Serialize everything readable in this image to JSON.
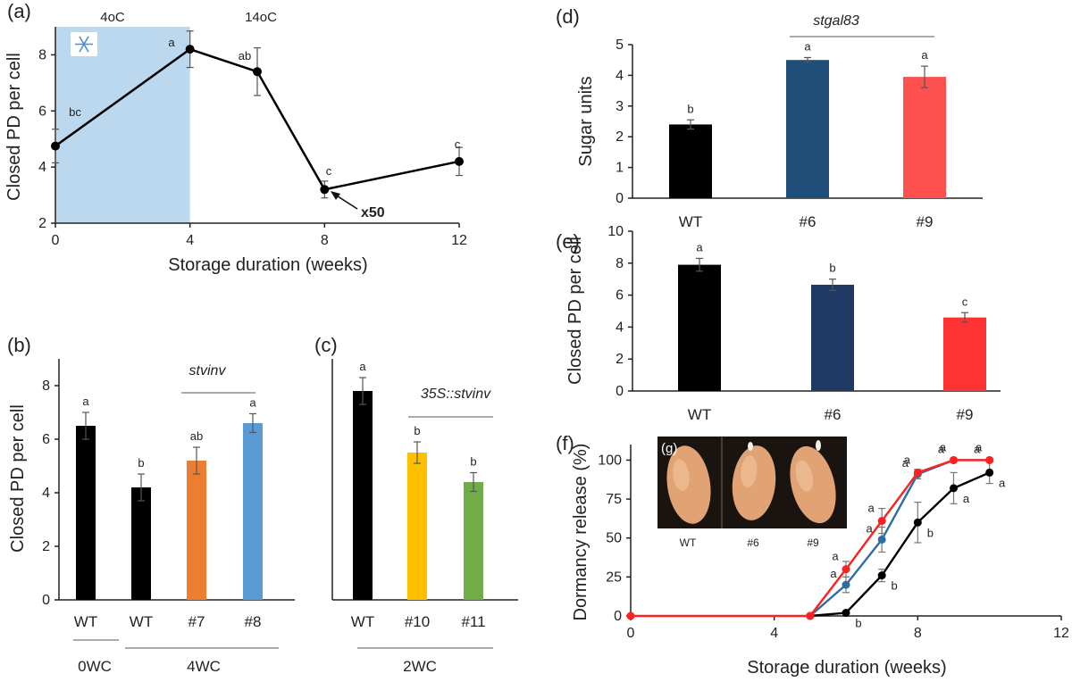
{
  "chart_data": [
    {
      "id": "a",
      "letter": "(a)",
      "type": "line",
      "xlabel": "Storage duration (weeks)",
      "ylabel": "Closed PD per cell",
      "xlim": [
        0,
        12
      ],
      "ylim": [
        2,
        9
      ],
      "xticks": [
        0,
        4,
        8,
        12
      ],
      "yticks": [
        2,
        4,
        6,
        8
      ],
      "x": [
        0,
        4,
        6,
        8,
        12
      ],
      "values": [
        4.75,
        8.2,
        7.4,
        3.2,
        4.2
      ],
      "errors": [
        0.6,
        0.65,
        0.85,
        0.3,
        0.5
      ],
      "sig": [
        "bc",
        "a",
        "ab",
        "c",
        "c"
      ],
      "shade": {
        "from": 0,
        "to": 4,
        "color": "#bcd8ee"
      },
      "temperatures": [
        "4oC",
        "14oC"
      ],
      "annotation": "x50",
      "icon": "snowflake-icon",
      "line_color": "#000000"
    },
    {
      "id": "b",
      "letter": "(b)",
      "type": "bar",
      "ylabel": "Closed PD per cell",
      "ylim": [
        0,
        9
      ],
      "yticks": [
        0,
        2,
        4,
        6,
        8
      ],
      "categories": [
        "WT",
        "WT",
        "#7",
        "#8"
      ],
      "values": [
        6.5,
        4.2,
        5.2,
        6.6
      ],
      "errors": [
        0.5,
        0.5,
        0.5,
        0.35
      ],
      "sig": [
        "a",
        "b",
        "ab",
        "a"
      ],
      "colors": [
        "#000000",
        "#000000",
        "#ed7d31",
        "#5b9bd5"
      ],
      "bracket_label": "stvinv",
      "groups": [
        "0WC",
        "4WC"
      ]
    },
    {
      "id": "c",
      "letter": "(c)",
      "type": "bar",
      "ylim": [
        0,
        9
      ],
      "categories": [
        "WT",
        "#10",
        "#11"
      ],
      "values": [
        7.8,
        5.5,
        4.4
      ],
      "errors": [
        0.5,
        0.4,
        0.35
      ],
      "sig": [
        "a",
        "b",
        "b"
      ],
      "colors": [
        "#000000",
        "#ffc000",
        "#70ad47"
      ],
      "bracket_label": "35S::stvinv",
      "groups": [
        "2WC"
      ]
    },
    {
      "id": "d",
      "letter": "(d)",
      "type": "bar",
      "ylabel": "Sugar units",
      "ylim": [
        0,
        5
      ],
      "yticks": [
        0,
        1,
        2,
        3,
        4,
        5
      ],
      "categories": [
        "WT",
        "#6",
        "#9"
      ],
      "values": [
        2.4,
        4.5,
        3.95
      ],
      "errors": [
        0.15,
        0.08,
        0.35
      ],
      "sig": [
        "b",
        "a",
        "a"
      ],
      "colors": [
        "#000000",
        "#1f4e79",
        "#ff5050"
      ],
      "bracket_label": "stgal83"
    },
    {
      "id": "e",
      "letter": "(e)",
      "type": "bar",
      "ylabel": "Closed PD per cell",
      "ylim": [
        0,
        10
      ],
      "yticks": [
        0,
        2,
        4,
        6,
        8,
        10
      ],
      "categories": [
        "WT",
        "#6",
        "#9"
      ],
      "values": [
        7.9,
        6.65,
        4.6
      ],
      "errors": [
        0.4,
        0.35,
        0.3
      ],
      "sig": [
        "a",
        "b",
        "c"
      ],
      "colors": [
        "#000000",
        "#1f3864",
        "#ff3333"
      ]
    },
    {
      "id": "f",
      "letter": "(f)",
      "type": "line",
      "xlabel": "Storage duration (weeks)",
      "ylabel": "Dormancy release (%)",
      "xlim": [
        0,
        12
      ],
      "ylim": [
        0,
        110
      ],
      "xticks": [
        0,
        4,
        8,
        12
      ],
      "yticks": [
        0,
        25,
        50,
        75,
        100
      ],
      "series": [
        {
          "color": "#000000",
          "x": [
            5,
            6,
            7,
            8,
            9,
            10
          ],
          "values": [
            0,
            2,
            26,
            60,
            82,
            92
          ],
          "errors": [
            0,
            0,
            4,
            13,
            10,
            7
          ],
          "sig": [
            "",
            "b",
            "b",
            "b",
            "a",
            "a"
          ]
        },
        {
          "color": "#2e6da4",
          "x": [
            5,
            6,
            7,
            8,
            9,
            10
          ],
          "values": [
            0,
            20,
            49,
            91,
            100,
            100
          ],
          "errors": [
            0,
            5,
            8,
            3,
            0,
            0
          ],
          "sig": [
            "",
            "a",
            "a",
            "a",
            "a",
            "a"
          ]
        },
        {
          "color": "#ff2020",
          "x": [
            0,
            5,
            6,
            7,
            8,
            9,
            10
          ],
          "values": [
            0,
            0,
            30,
            61,
            92,
            100,
            100
          ],
          "errors": [
            0,
            0,
            5,
            8,
            2,
            0,
            0
          ],
          "sig": [
            "",
            "",
            "a",
            "a",
            "a",
            "a",
            "a"
          ]
        }
      ],
      "inset": {
        "letter": "(g)",
        "labels": [
          "WT",
          "#6",
          "#9"
        ]
      }
    }
  ]
}
